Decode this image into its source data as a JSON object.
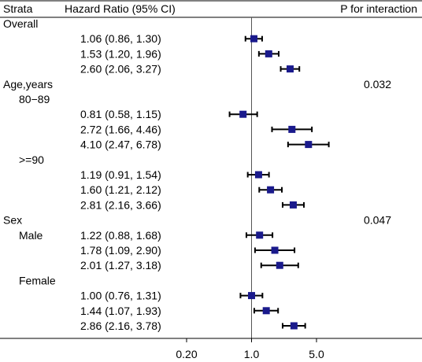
{
  "chart_data": {
    "type": "forest",
    "header": {
      "strata": "Strata",
      "estimate": "Hazard Ratio (95% CI)",
      "p": "P for interaction"
    },
    "x_scale": "log",
    "reference_value": 1.0,
    "xlim": [
      0.2,
      5.0
    ],
    "x_ticks": [
      {
        "value": 0.2,
        "label": "0.20"
      },
      {
        "value": 1.0,
        "label": "1.0"
      },
      {
        "value": 5.0,
        "label": "5.0"
      }
    ],
    "marker_color": "#1a1a8c",
    "rows": [
      {
        "kind": "group",
        "label": "Overall"
      },
      {
        "kind": "est",
        "text": "1.06 (0.86, 1.30)",
        "hr": 1.06,
        "lo": 0.86,
        "hi": 1.3
      },
      {
        "kind": "est",
        "text": "1.53 (1.20, 1.96)",
        "hr": 1.53,
        "lo": 1.2,
        "hi": 1.96
      },
      {
        "kind": "est",
        "text": "2.60 (2.06, 3.27)",
        "hr": 2.6,
        "lo": 2.06,
        "hi": 3.27
      },
      {
        "kind": "group",
        "label": "Age,years",
        "p": "0.032"
      },
      {
        "kind": "subgroup",
        "label": "80−89"
      },
      {
        "kind": "est",
        "text": "0.81 (0.58, 1.15)",
        "hr": 0.81,
        "lo": 0.58,
        "hi": 1.15
      },
      {
        "kind": "est",
        "text": "2.72 (1.66, 4.46)",
        "hr": 2.72,
        "lo": 1.66,
        "hi": 4.46
      },
      {
        "kind": "est",
        "text": "4.10 (2.47, 6.78)",
        "hr": 4.1,
        "lo": 2.47,
        "hi": 6.78
      },
      {
        "kind": "subgroup",
        "label": ">=90"
      },
      {
        "kind": "est",
        "text": "1.19 (0.91, 1.54)",
        "hr": 1.19,
        "lo": 0.91,
        "hi": 1.54
      },
      {
        "kind": "est",
        "text": "1.60 (1.21, 2.12)",
        "hr": 1.6,
        "lo": 1.21,
        "hi": 2.12
      },
      {
        "kind": "est",
        "text": "2.81 (2.16, 3.66)",
        "hr": 2.81,
        "lo": 2.16,
        "hi": 3.66
      },
      {
        "kind": "group",
        "label": "Sex",
        "p": "0.047"
      },
      {
        "kind": "subgroup",
        "label": "Male",
        "inline": true,
        "text": "1.22 (0.88, 1.68)",
        "hr": 1.22,
        "lo": 0.88,
        "hi": 1.68
      },
      {
        "kind": "est",
        "text": "1.78 (1.09, 2.90)",
        "hr": 1.78,
        "lo": 1.09,
        "hi": 2.9
      },
      {
        "kind": "est",
        "text": "2.01 (1.27, 3.18)",
        "hr": 2.01,
        "lo": 1.27,
        "hi": 3.18
      },
      {
        "kind": "subgroup",
        "label": "Female"
      },
      {
        "kind": "est",
        "text": "1.00 (0.76, 1.31)",
        "hr": 1.0,
        "lo": 0.76,
        "hi": 1.31
      },
      {
        "kind": "est",
        "text": "1.44 (1.07, 1.93)",
        "hr": 1.44,
        "lo": 1.07,
        "hi": 1.93
      },
      {
        "kind": "est",
        "text": "2.86 (2.16, 3.78)",
        "hr": 2.86,
        "lo": 2.16,
        "hi": 3.78
      }
    ]
  }
}
